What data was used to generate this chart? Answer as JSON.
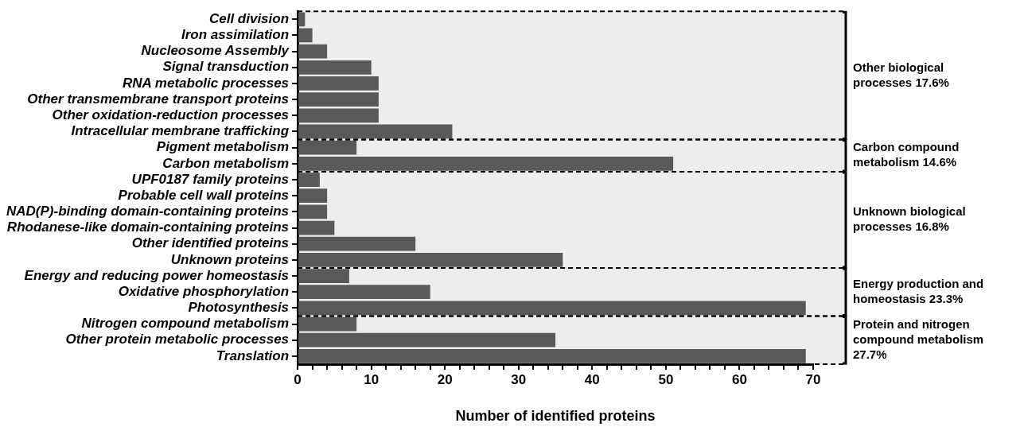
{
  "chart_data": {
    "type": "bar",
    "orientation": "horizontal",
    "xlabel": "Number of identified proteins",
    "categories": [
      "Cell division",
      "Iron assimilation",
      "Nucleosome Assembly",
      "Signal transduction",
      "RNA metabolic processes",
      "Other transmembrane transport proteins",
      "Other oxidation-reduction processes",
      "Intracellular membrane trafficking",
      "Pigment metabolism",
      "Carbon metabolism",
      "UPF0187 family proteins",
      "Probable cell wall proteins",
      "NAD(P)-binding domain-containing proteins",
      "Rhodanese-like domain-containing proteins",
      "Other identified proteins",
      "Unknown proteins",
      "Energy and reducing power homeostasis",
      "Oxidative phosphorylation",
      "Photosynthesis",
      "Nitrogen compound metabolism",
      "Other protein metabolic processes",
      "Translation"
    ],
    "values": [
      1,
      2,
      4,
      10,
      11,
      11,
      11,
      21,
      8,
      51,
      3,
      4,
      4,
      5,
      16,
      36,
      7,
      18,
      69,
      8,
      35,
      69
    ],
    "color": "#606060",
    "xlim": [
      0,
      70
    ],
    "xticks": [
      0,
      {
        "value": 2,
        "label": null
      },
      {
        "value": 4,
        "label": null
      },
      {
        "value": 6,
        "label": null
      },
      {
        "value": 8,
        "label": null
      },
      10,
      {
        "value": 12,
        "label": null
      },
      {
        "value": 14,
        "label": null
      },
      {
        "value": 16,
        "label": null
      },
      {
        "value": 18,
        "label": null
      },
      20,
      {
        "value": 22,
        "label": null
      },
      {
        "value": 24,
        "label": null
      },
      {
        "value": 26,
        "label": null
      },
      {
        "value": 28,
        "label": null
      },
      30,
      {
        "value": 32,
        "label": null
      },
      {
        "value": 34,
        "label": null
      },
      {
        "value": 36,
        "label": null
      },
      {
        "value": 38,
        "label": null
      },
      40,
      {
        "value": 42,
        "label": null
      },
      {
        "value": 44,
        "label": null
      },
      {
        "value": 46,
        "label": null
      },
      {
        "value": 48,
        "label": null
      },
      50,
      {
        "value": 52,
        "label": null
      },
      {
        "value": 54,
        "label": null
      },
      {
        "value": 56,
        "label": null
      },
      {
        "value": 58,
        "label": null
      },
      60,
      {
        "value": 62,
        "label": null
      },
      {
        "value": 64,
        "label": null
      },
      {
        "value": 66,
        "label": null
      },
      {
        "value": 68,
        "label": null
      },
      70
    ],
    "grid": false,
    "legend": false,
    "bands": [
      {
        "axis": "y",
        "from": "Cell division",
        "to": "Intracellular membrane trafficking",
        "label": "Other biological processes 17.6%",
        "color": "#000000"
      },
      {
        "axis": "y",
        "from": "Pigment metabolism",
        "to": "Carbon metabolism",
        "label": "Carbon compound metabolism 14.6%",
        "color": "#000000"
      },
      {
        "axis": "y",
        "from": "UPF0187 family proteins",
        "to": "Unknown proteins",
        "label": "Unknown biological processes 16.8%",
        "color": "#000000"
      },
      {
        "axis": "y",
        "from": "Energy and reducing power homeostasis",
        "to": "Photosynthesis",
        "label": "Energy production and homeostasis 23.3%",
        "color": "#000000"
      },
      {
        "axis": "y",
        "from": "Nitrogen compound metabolism",
        "to": "Translation",
        "label": "Protein and nitrogen compound metabolism 27.7%",
        "color": "#000000"
      }
    ]
  }
}
